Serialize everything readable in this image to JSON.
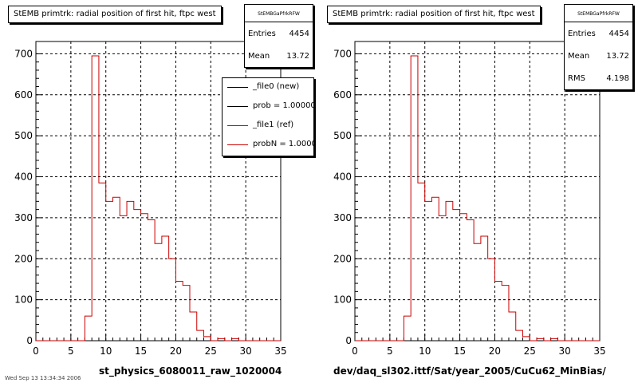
{
  "footer_text": "Wed Sep 13 13:34:34 2006",
  "panels": [
    {
      "title": "StEMB primtrk: radial position of first hit, ftpc west",
      "stats": {
        "name": "StEMBGaPfrkRFW",
        "rows": [
          {
            "label": "Entries",
            "value": "4454"
          },
          {
            "label": "Mean",
            "value": "13.72"
          }
        ]
      },
      "legend": [
        {
          "label": "_file0 (new)",
          "color": "#000000"
        },
        {
          "label": "prob = 1.000000",
          "color": "#000000"
        },
        {
          "label": "_file1 (ref)",
          "color": "#cc0000"
        },
        {
          "label": "probN = 1.000000",
          "color": "#cc0000"
        }
      ],
      "x_file_label": "st_physics_6080011_raw_1020004"
    },
    {
      "title": "StEMB primtrk: radial position of first hit, ftpc west",
      "stats": {
        "name": "StEMBGaPfrkRFW",
        "rows": [
          {
            "label": "Entries",
            "value": "4454"
          },
          {
            "label": "Mean",
            "value": "13.72"
          },
          {
            "label": "RMS",
            "value": "4.198"
          }
        ]
      },
      "legend": [],
      "x_file_label": "dev/daq_sl302.ittf/Sat/year_2005/CuCu62_MinBias/"
    }
  ],
  "chart_data": [
    {
      "type": "bar",
      "title": "StEMB primtrk: radial position of first hit, ftpc west",
      "xlim": [
        0,
        35
      ],
      "ylim": [
        0,
        730
      ],
      "xticks": [
        0,
        5,
        10,
        15,
        20,
        25,
        30,
        35
      ],
      "yticks": [
        0,
        100,
        200,
        300,
        400,
        500,
        600,
        700
      ],
      "grid": true,
      "bin_width": 1,
      "series": [
        {
          "name": "_file1 (ref)",
          "color": "#cc0000",
          "style": "step",
          "bins_lo": [
            0,
            1,
            2,
            3,
            4,
            5,
            6,
            7,
            8,
            9,
            10,
            11,
            12,
            13,
            14,
            15,
            16,
            17,
            18,
            19,
            20,
            21,
            22,
            23,
            24,
            25,
            26,
            27,
            28,
            29,
            30,
            31,
            32,
            33,
            34
          ],
          "values": [
            0,
            0,
            0,
            0,
            0,
            0,
            0,
            60,
            695,
            385,
            340,
            350,
            305,
            340,
            320,
            310,
            295,
            237,
            255,
            200,
            145,
            135,
            70,
            25,
            10,
            0,
            5,
            0,
            5,
            0,
            0,
            0,
            0,
            0,
            0
          ]
        }
      ]
    },
    {
      "type": "bar",
      "title": "StEMB primtrk: radial position of first hit, ftpc west",
      "xlim": [
        0,
        35
      ],
      "ylim": [
        0,
        730
      ],
      "xticks": [
        0,
        5,
        10,
        15,
        20,
        25,
        30,
        35
      ],
      "yticks": [
        0,
        100,
        200,
        300,
        400,
        500,
        600,
        700
      ],
      "grid": true,
      "bin_width": 1,
      "series": [
        {
          "name": "",
          "color": "#cc0000",
          "style": "step",
          "bins_lo": [
            0,
            1,
            2,
            3,
            4,
            5,
            6,
            7,
            8,
            9,
            10,
            11,
            12,
            13,
            14,
            15,
            16,
            17,
            18,
            19,
            20,
            21,
            22,
            23,
            24,
            25,
            26,
            27,
            28,
            29,
            30,
            31,
            32,
            33,
            34
          ],
          "values": [
            0,
            0,
            0,
            0,
            0,
            0,
            0,
            60,
            695,
            385,
            340,
            350,
            305,
            340,
            320,
            310,
            295,
            237,
            255,
            200,
            145,
            135,
            70,
            25,
            10,
            0,
            5,
            0,
            5,
            0,
            0,
            0,
            0,
            0,
            0
          ]
        }
      ]
    }
  ]
}
